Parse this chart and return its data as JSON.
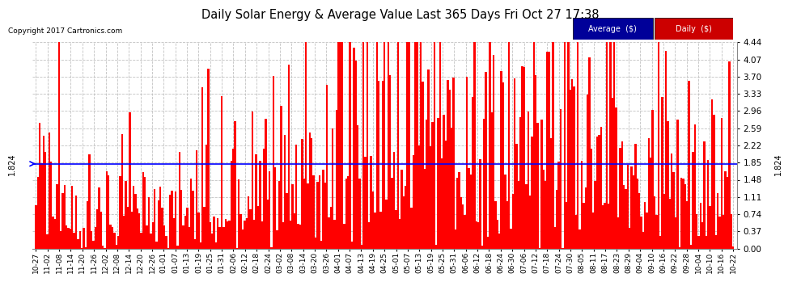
{
  "title": "Daily Solar Energy & Average Value Last 365 Days Fri Oct 27 17:38",
  "copyright": "Copyright 2017 Cartronics.com",
  "average_value": 1.824,
  "average_label": "1.824",
  "ylim": [
    0.0,
    4.44
  ],
  "yticks": [
    0.0,
    0.37,
    0.74,
    1.11,
    1.48,
    1.85,
    2.22,
    2.59,
    2.96,
    3.33,
    3.7,
    4.07,
    4.44
  ],
  "bar_color": "#FF0000",
  "avg_line_color": "#0000FF",
  "background_color": "#FFFFFF",
  "grid_color": "#BBBBBB",
  "legend_avg_bg": "#000099",
  "legend_daily_bg": "#CC0000",
  "x_labels": [
    "10-27",
    "11-02",
    "11-08",
    "11-14",
    "11-20",
    "11-26",
    "12-02",
    "12-08",
    "12-14",
    "12-20",
    "12-26",
    "01-01",
    "01-07",
    "01-13",
    "01-19",
    "01-25",
    "01-31",
    "02-06",
    "02-12",
    "02-18",
    "02-24",
    "03-02",
    "03-08",
    "03-14",
    "03-20",
    "03-26",
    "04-01",
    "04-07",
    "04-13",
    "04-19",
    "04-25",
    "05-01",
    "05-07",
    "05-13",
    "05-19",
    "05-25",
    "05-31",
    "06-06",
    "06-12",
    "06-18",
    "06-24",
    "06-30",
    "07-06",
    "07-12",
    "07-18",
    "07-24",
    "07-30",
    "08-05",
    "08-11",
    "08-17",
    "08-23",
    "08-29",
    "09-04",
    "09-10",
    "09-16",
    "09-22",
    "09-28",
    "10-04",
    "10-10",
    "10-16",
    "10-22"
  ],
  "num_bars": 365,
  "seed": 12345
}
